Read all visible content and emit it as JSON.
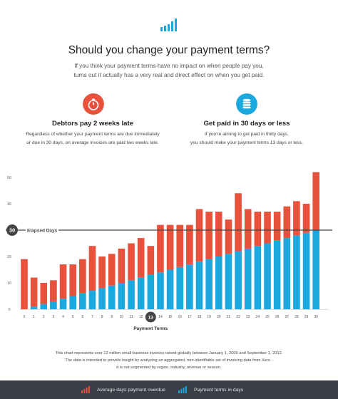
{
  "header": {
    "title": "Should you change your payment terms?",
    "intro_line1": "If you think your payment terms have no impact on when people pay you,",
    "intro_line2": "turns out it actually has a very real and direct effect on when you get paid."
  },
  "features": {
    "left": {
      "icon": "stopwatch-icon",
      "color": "#e8523c",
      "title": "Debtors pay 2 weeks late",
      "desc_line1": "Regardless of whether your payment terms are due immediately",
      "desc_line2": "or due in 30 days, on average invoices are paid two weeks late."
    },
    "right": {
      "icon": "coin-stack-icon",
      "color": "#1ba8df",
      "title": "Get paid in 30 days or less",
      "desc_line1": "If you're aiming to get paid in thirty days,",
      "desc_line2": "you should make your payment terms 13 days or less."
    }
  },
  "chart_data": {
    "type": "bar",
    "stacked": true,
    "xlabel": "Payment Terms",
    "categories": [
      "0",
      "1",
      "2",
      "3",
      "4",
      "5",
      "6",
      "7",
      "8",
      "9",
      "10",
      "11",
      "12",
      "13",
      "14",
      "15",
      "16",
      "17",
      "18",
      "19",
      "20",
      "21",
      "22",
      "23",
      "24",
      "25",
      "26",
      "27",
      "28",
      "29",
      "30"
    ],
    "series": [
      {
        "name": "Payment terms in days",
        "color": "#1ba8df",
        "values": [
          0,
          1,
          2,
          3,
          4,
          5,
          6,
          7,
          8,
          9,
          10,
          11,
          12,
          13,
          14,
          15,
          16,
          17,
          18,
          19,
          20,
          21,
          22,
          23,
          24,
          25,
          26,
          27,
          28,
          29,
          30
        ]
      },
      {
        "name": "Average days payment overdue",
        "color": "#e8523c",
        "values": [
          19,
          11,
          8,
          8,
          13,
          12,
          13,
          17,
          12,
          12,
          13,
          14,
          15,
          11,
          18,
          17,
          16,
          15,
          20,
          18,
          17,
          13,
          22,
          15,
          13,
          12,
          11,
          12,
          13,
          11,
          22
        ]
      }
    ],
    "ylim": [
      0,
      52
    ],
    "yticks": [
      "0",
      "10",
      "20",
      "30",
      "40",
      "50"
    ],
    "yticks_values": [
      0,
      10,
      20,
      30,
      40,
      50
    ],
    "reference_line": {
      "value": 30,
      "badge": "30",
      "label": "Elapsed Days",
      "color": "#444444"
    },
    "highlight": {
      "category": "13",
      "color": "#444444"
    },
    "grid": false
  },
  "footnote": {
    "line1": "This chart represents over 12 million small business invoices raised globally between January 1, 2009 and September 1, 2012.",
    "line2": "The data is intended to provide insight by analyzing an aggregated, non-identifiable set of invoicing data from Xero -",
    "line3": "it is not segmented by region, industry, revenue or season."
  },
  "legend": {
    "overdue_label": "Average days payment overdue",
    "terms_label": "Payment terms in days",
    "overdue_color": "#e8523c",
    "terms_color": "#1ba8df"
  },
  "logo": {
    "icon": "bar-chart-logo-icon",
    "color": "#1ba8df"
  }
}
